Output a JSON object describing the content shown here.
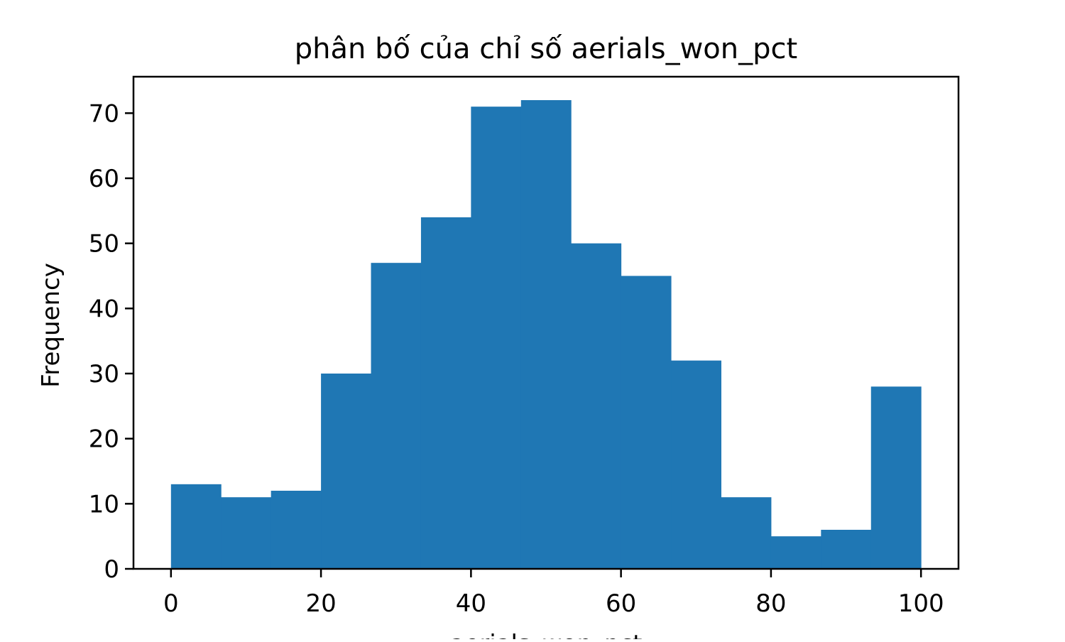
{
  "chart_data": {
    "type": "bar",
    "title": "phân bố của chỉ số aerials_won_pct",
    "xlabel": "aerials_won_pct",
    "ylabel": "Frequency",
    "bin_edges": [
      0,
      6.6667,
      13.3333,
      20,
      26.6667,
      33.3333,
      40,
      46.6667,
      53.3333,
      60,
      66.6667,
      73.3333,
      80,
      86.6667,
      93.3333,
      100
    ],
    "values": [
      13,
      11,
      12,
      30,
      47,
      54,
      71,
      72,
      50,
      45,
      32,
      11,
      5,
      6,
      28
    ],
    "xlim": [
      -5,
      105
    ],
    "ylim": [
      0,
      75.6
    ],
    "xticks": [
      0,
      20,
      40,
      60,
      80,
      100
    ],
    "xtick_labels": [
      "0",
      "20",
      "40",
      "60",
      "80",
      "100"
    ],
    "yticks": [
      0,
      10,
      20,
      30,
      40,
      50,
      60,
      70
    ],
    "ytick_labels": [
      "0",
      "10",
      "20",
      "30",
      "40",
      "50",
      "60",
      "70"
    ],
    "bar_color": "#1f77b4",
    "grid": false,
    "legend": "none"
  }
}
